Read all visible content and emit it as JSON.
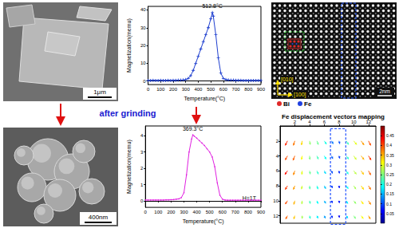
{
  "chart_data": [
    {
      "type": "line",
      "xlabel": "Temperature(°C)",
      "ylabel": "Magnetization(memu)",
      "x": [
        0,
        20,
        40,
        60,
        80,
        100,
        120,
        140,
        160,
        180,
        200,
        220,
        240,
        260,
        280,
        300,
        320,
        340,
        360,
        380,
        400,
        420,
        440,
        460,
        480,
        500,
        512.8,
        520,
        540,
        560,
        580,
        600,
        620,
        640,
        660,
        680,
        700,
        720,
        740,
        760,
        780,
        800,
        820,
        840,
        860,
        880,
        900
      ],
      "values": [
        0.3,
        0.3,
        0.4,
        0.3,
        0.3,
        0.4,
        0.3,
        0.3,
        0.4,
        0.3,
        0.4,
        0.4,
        0.5,
        0.5,
        0.6,
        0.8,
        1.5,
        3,
        6,
        10,
        14,
        18,
        22,
        26,
        30,
        35,
        38.5,
        36.5,
        26,
        13,
        4.5,
        1.5,
        0.8,
        0.6,
        0.5,
        0.5,
        0.4,
        0.4,
        0.4,
        0.3,
        0.3,
        0.3,
        0.3,
        0.3,
        0.3,
        0.3,
        0.3
      ],
      "color": "#1f3fcf",
      "marker": "plus",
      "peak_label": "512.8°C",
      "xlim": [
        0,
        900
      ],
      "xticks": [
        0,
        100,
        200,
        300,
        400,
        500,
        600,
        700,
        800,
        900
      ],
      "ylim": [
        -2,
        42
      ],
      "yticks": [
        0,
        10,
        20,
        30,
        40
      ],
      "grid": false
    },
    {
      "type": "line",
      "xlabel": "Temperature(°C)",
      "ylabel": "Magnetization(memu)",
      "x": [
        0,
        20,
        40,
        60,
        80,
        100,
        120,
        140,
        160,
        180,
        200,
        220,
        240,
        260,
        280,
        300,
        320,
        340,
        360,
        369.3,
        380,
        400,
        420,
        440,
        460,
        480,
        500,
        520,
        540,
        560,
        580,
        600,
        620,
        640,
        660,
        680,
        700,
        720,
        740,
        760,
        780,
        800,
        820,
        840,
        860,
        880,
        900
      ],
      "values": [
        0.05,
        0.05,
        0.05,
        0.05,
        0.05,
        0.05,
        0.05,
        0.05,
        0.06,
        0.06,
        0.07,
        0.08,
        0.1,
        0.12,
        0.2,
        0.5,
        1.6,
        3.0,
        3.8,
        4.05,
        3.98,
        3.85,
        3.7,
        3.55,
        3.4,
        3.2,
        3.0,
        2.7,
        2.1,
        1.1,
        0.35,
        0.1,
        0.05,
        0.04,
        0.04,
        0.04,
        0.04,
        0.04,
        0.04,
        0.04,
        0.04,
        0.04,
        0.04,
        0.04,
        0.04,
        0.04,
        0.04
      ],
      "color": "#e020e0",
      "marker": "circle",
      "peak_label": "369.3°C",
      "note": "H=1T",
      "xlim": [
        0,
        900
      ],
      "xticks": [
        0,
        100,
        200,
        300,
        400,
        500,
        600,
        700,
        800,
        900
      ],
      "ylim": [
        -0.4,
        4.6
      ],
      "yticks": [
        0,
        1,
        2,
        3,
        4
      ],
      "grid": false
    },
    {
      "type": "vector",
      "title": "Fe displacement vectors mapping",
      "xlim": [
        0,
        13
      ],
      "xticks": [
        2,
        4,
        6,
        8,
        10,
        12
      ],
      "ylim": [
        0,
        13
      ],
      "yticks": [
        2,
        4,
        6,
        8,
        10,
        12
      ],
      "grid": false,
      "vectors": [
        [
          1,
          2,
          -0.3,
          0.6,
          0.42
        ],
        [
          2,
          2,
          -0.2,
          0.6,
          0.38
        ],
        [
          3,
          2,
          -0.1,
          0.55,
          0.33
        ],
        [
          4,
          2,
          0.1,
          0.5,
          0.26
        ],
        [
          5,
          2,
          0.2,
          0.5,
          0.24
        ],
        [
          6,
          2,
          0.3,
          0.45,
          0.2
        ],
        [
          7,
          2,
          0.2,
          0.4,
          0.12
        ],
        [
          8,
          2,
          0.1,
          0.4,
          0.1
        ],
        [
          9,
          2,
          0.3,
          0.5,
          0.22
        ],
        [
          10,
          2,
          0.4,
          0.5,
          0.3
        ],
        [
          11,
          2,
          0.4,
          0.55,
          0.36
        ],
        [
          12,
          2,
          0.3,
          0.6,
          0.4
        ],
        [
          1,
          4,
          -0.3,
          0.55,
          0.4
        ],
        [
          2,
          4,
          -0.25,
          0.6,
          0.39
        ],
        [
          3,
          4,
          -0.1,
          0.5,
          0.31
        ],
        [
          4,
          4,
          0.05,
          0.5,
          0.25
        ],
        [
          5,
          4,
          0.2,
          0.45,
          0.22
        ],
        [
          6,
          4,
          0.25,
          0.45,
          0.19
        ],
        [
          7,
          4,
          0.15,
          0.4,
          0.11
        ],
        [
          8,
          4,
          0.1,
          0.35,
          0.09
        ],
        [
          9,
          4,
          0.3,
          0.45,
          0.21
        ],
        [
          10,
          4,
          0.35,
          0.5,
          0.29
        ],
        [
          11,
          4,
          0.4,
          0.5,
          0.35
        ],
        [
          12,
          4,
          0.35,
          0.55,
          0.41
        ],
        [
          1,
          6,
          -0.35,
          0.5,
          0.43
        ],
        [
          2,
          6,
          -0.2,
          0.55,
          0.37
        ],
        [
          3,
          6,
          -0.05,
          0.5,
          0.3
        ],
        [
          4,
          6,
          0.1,
          0.45,
          0.24
        ],
        [
          5,
          6,
          0.2,
          0.45,
          0.21
        ],
        [
          6,
          6,
          0.2,
          0.4,
          0.17
        ],
        [
          7,
          6,
          0.1,
          0.35,
          0.1
        ],
        [
          8,
          6,
          0.05,
          0.35,
          0.08
        ],
        [
          9,
          6,
          0.25,
          0.45,
          0.2
        ],
        [
          10,
          6,
          0.35,
          0.45,
          0.28
        ],
        [
          11,
          6,
          0.35,
          0.5,
          0.34
        ],
        [
          12,
          6,
          0.3,
          0.55,
          0.39
        ],
        [
          1,
          8,
          -0.3,
          0.5,
          0.41
        ],
        [
          2,
          8,
          -0.2,
          0.5,
          0.36
        ],
        [
          3,
          8,
          -0.1,
          0.45,
          0.29
        ],
        [
          4,
          8,
          0.05,
          0.45,
          0.23
        ],
        [
          5,
          8,
          0.15,
          0.45,
          0.2
        ],
        [
          6,
          8,
          0.2,
          0.4,
          0.16
        ],
        [
          7,
          8,
          0.1,
          0.3,
          0.09
        ],
        [
          8,
          8,
          0.05,
          0.3,
          0.07
        ],
        [
          9,
          8,
          0.25,
          0.4,
          0.19
        ],
        [
          10,
          8,
          0.3,
          0.45,
          0.27
        ],
        [
          11,
          8,
          0.35,
          0.5,
          0.33
        ],
        [
          12,
          8,
          0.3,
          0.5,
          0.38
        ],
        [
          1,
          10,
          -0.3,
          0.45,
          0.4
        ],
        [
          2,
          10,
          -0.15,
          0.5,
          0.35
        ],
        [
          3,
          10,
          -0.05,
          0.45,
          0.28
        ],
        [
          4,
          10,
          0.1,
          0.4,
          0.22
        ],
        [
          5,
          10,
          0.15,
          0.4,
          0.19
        ],
        [
          6,
          10,
          0.2,
          0.35,
          0.15
        ],
        [
          7,
          10,
          0.1,
          0.3,
          0.08
        ],
        [
          8,
          10,
          0.05,
          0.3,
          0.07
        ],
        [
          9,
          10,
          0.2,
          0.4,
          0.18
        ],
        [
          10,
          10,
          0.3,
          0.4,
          0.26
        ],
        [
          11,
          10,
          0.3,
          0.45,
          0.32
        ],
        [
          12,
          10,
          0.3,
          0.5,
          0.37
        ],
        [
          1,
          12,
          -0.25,
          0.45,
          0.39
        ],
        [
          2,
          12,
          -0.15,
          0.45,
          0.34
        ],
        [
          3,
          12,
          0,
          0.4,
          0.27
        ],
        [
          4,
          12,
          0.1,
          0.4,
          0.21
        ],
        [
          5,
          12,
          0.15,
          0.35,
          0.18
        ],
        [
          6,
          12,
          0.15,
          0.35,
          0.14
        ],
        [
          7,
          12,
          0.1,
          0.3,
          0.08
        ],
        [
          8,
          12,
          0.05,
          0.25,
          0.06
        ],
        [
          9,
          12,
          0.2,
          0.35,
          0.17
        ],
        [
          10,
          12,
          0.25,
          0.4,
          0.25
        ],
        [
          11,
          12,
          0.3,
          0.4,
          0.31
        ],
        [
          12,
          12,
          0.25,
          0.45,
          0.36
        ]
      ],
      "colorbar": {
        "range": [
          0,
          0.5
        ],
        "ticks": [
          0.05,
          0.1,
          0.15,
          0.2,
          0.25,
          0.3,
          0.35,
          0.4,
          0.45
        ]
      }
    }
  ],
  "figure": {
    "transition": "after grinding",
    "sem_top": {
      "scale_bar": "1μm"
    },
    "sem_bottom": {
      "scale_bar": "400nm"
    },
    "stem": {
      "directions": [
        "[010]",
        "[100]"
      ],
      "scale_bar": "2nm",
      "legend": [
        {
          "label": "Bi",
          "color": "#e02828"
        },
        {
          "label": "Fe",
          "color": "#2040e0"
        }
      ]
    }
  }
}
